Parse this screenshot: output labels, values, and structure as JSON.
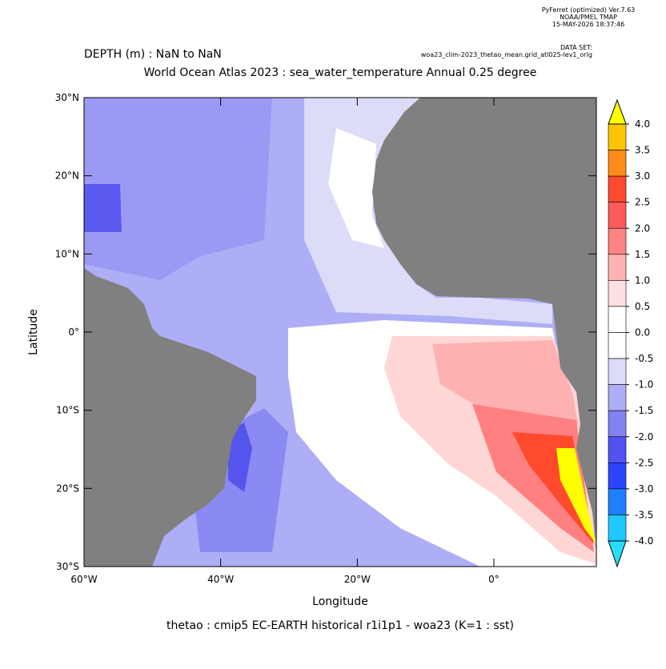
{
  "header": {
    "software": "PyFerret (optimized) Ver.7.63",
    "org": "NOAA/PMEL TMAP",
    "date": "15-MAY-2026 18:37:46",
    "dataset_label": "DATA SET:",
    "dataset": "woa23_clim-2023_thetao_mean.grid_atl025-lev1_orig"
  },
  "title": {
    "depth": "DEPTH (m) : NaN to NaN",
    "main": "World Ocean Atlas 2023 : sea_water_temperature Annual  0.25 degree"
  },
  "map": {
    "xlabel": "Longitude",
    "ylabel": "Latitude",
    "xlim": [
      -60,
      15
    ],
    "ylim": [
      -30,
      30
    ],
    "xticks": [
      {
        "value": -60,
        "label": "60°W"
      },
      {
        "value": -40,
        "label": "40°W"
      },
      {
        "value": -20,
        "label": "20°W"
      },
      {
        "value": 0,
        "label": "0°"
      }
    ],
    "yticks": [
      {
        "value": 30,
        "label": "30°N"
      },
      {
        "value": 20,
        "label": "20°N"
      },
      {
        "value": 10,
        "label": "10°N"
      },
      {
        "value": 0,
        "label": "0°"
      },
      {
        "value": -10,
        "label": "10°S"
      },
      {
        "value": -20,
        "label": "20°S"
      },
      {
        "value": -30,
        "label": "30°S"
      }
    ]
  },
  "colorbar": {
    "clim": [
      -4,
      4
    ],
    "ticks": [
      {
        "value": 4,
        "label": "4.0"
      },
      {
        "value": 3.5,
        "label": "3.5"
      },
      {
        "value": 3,
        "label": "3.0"
      },
      {
        "value": 2.5,
        "label": "2.5"
      },
      {
        "value": 2,
        "label": "2.0"
      },
      {
        "value": 1.5,
        "label": "1.5"
      },
      {
        "value": 1,
        "label": "1.0"
      },
      {
        "value": 0.5,
        "label": "0.5"
      },
      {
        "value": 0,
        "label": "0.0"
      },
      {
        "value": -0.5,
        "label": "-0.5"
      },
      {
        "value": -1,
        "label": "-1.0"
      },
      {
        "value": -1.5,
        "label": "-1.5"
      },
      {
        "value": -2,
        "label": "-2.0"
      },
      {
        "value": -2.5,
        "label": "-2.5"
      },
      {
        "value": -3,
        "label": "-3.0"
      },
      {
        "value": -3.5,
        "label": "-3.5"
      },
      {
        "value": -4,
        "label": "-4.0"
      }
    ],
    "colors": [
      "#ffc400",
      "#ff8c1a",
      "#ff4a2e",
      "#ff5a5a",
      "#ff8484",
      "#ffb2b2",
      "#ffe0e0",
      "#ffffff",
      "#ffffff",
      "#dcdcf8",
      "#aeaef6",
      "#8282f2",
      "#5252f2",
      "#2c44ff",
      "#1e80ff",
      "#1ec8ff"
    ],
    "over_color": "#ffff00",
    "under_color": "#28dcff"
  },
  "footer": "thetao : cmip5 EC-EARTH historical r1i1p1 - woa23  (K=1 : sst)"
}
